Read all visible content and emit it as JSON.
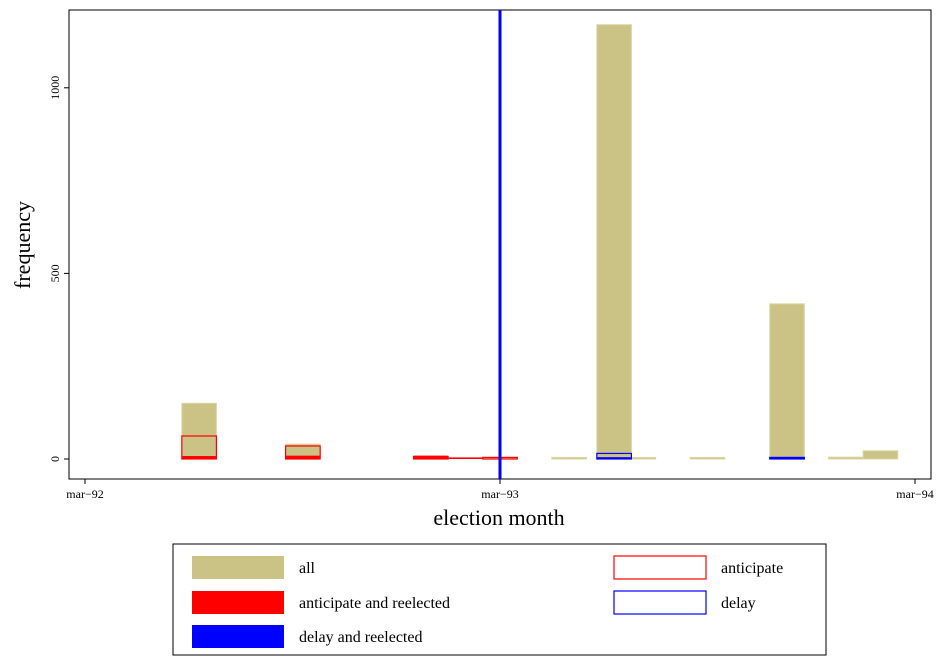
{
  "chart_data": {
    "type": "bar",
    "title": "",
    "xlabel": "election month",
    "ylabel": "frequency",
    "xlim": [
      0,
      24
    ],
    "ylim": [
      0,
      1200
    ],
    "x_ticks": [
      {
        "value": 0,
        "label": "mar−92"
      },
      {
        "value": 12,
        "label": "mar−93"
      },
      {
        "value": 24,
        "label": "mar−94"
      }
    ],
    "y_ticks": [
      {
        "value": 0,
        "label": "0"
      },
      {
        "value": 500,
        "label": "500"
      },
      {
        "value": 1000,
        "label": "1000"
      }
    ],
    "reference_line": {
      "x": 12,
      "color": "#0000ff"
    },
    "bar_width": 1,
    "series": [
      {
        "name": "all",
        "style": "filled",
        "color": "#cbc385",
        "x": [
          3.3,
          6.3,
          12,
          14,
          15.3,
          16,
          18,
          20.3,
          22,
          23
        ],
        "values": [
          150,
          40,
          2,
          2,
          1170,
          2,
          2,
          418,
          5,
          22
        ]
      },
      {
        "name": "anticipate",
        "style": "outline",
        "color": "#ff0000",
        "x": [
          3.3,
          6.3,
          10,
          12
        ],
        "values": [
          62,
          35,
          7,
          3
        ]
      },
      {
        "name": "delay",
        "style": "outline",
        "color": "#0000ff",
        "x": [
          15.3,
          20.3
        ],
        "values": [
          15,
          2
        ]
      },
      {
        "name": "anticipate and reelected",
        "style": "filled",
        "color": "#ff0000",
        "x": [
          3.3,
          6.3,
          10,
          11
        ],
        "values": [
          8,
          9,
          9,
          3
        ]
      },
      {
        "name": "delay and reelected",
        "style": "filled",
        "color": "#0000ff",
        "x": [
          15.3,
          20.3
        ],
        "values": [
          5,
          2
        ]
      }
    ],
    "legend": {
      "placement": "bottom",
      "entries": [
        {
          "label": "all",
          "style": "filled",
          "color": "#cbc385"
        },
        {
          "label": "anticipate",
          "style": "outline",
          "color": "#ff0000"
        },
        {
          "label": "anticipate and reelected",
          "style": "filled",
          "color": "#ff0000"
        },
        {
          "label": "delay",
          "style": "outline",
          "color": "#0000ff"
        },
        {
          "label": "delay and reelected",
          "style": "filled",
          "color": "#0000ff"
        }
      ]
    }
  }
}
